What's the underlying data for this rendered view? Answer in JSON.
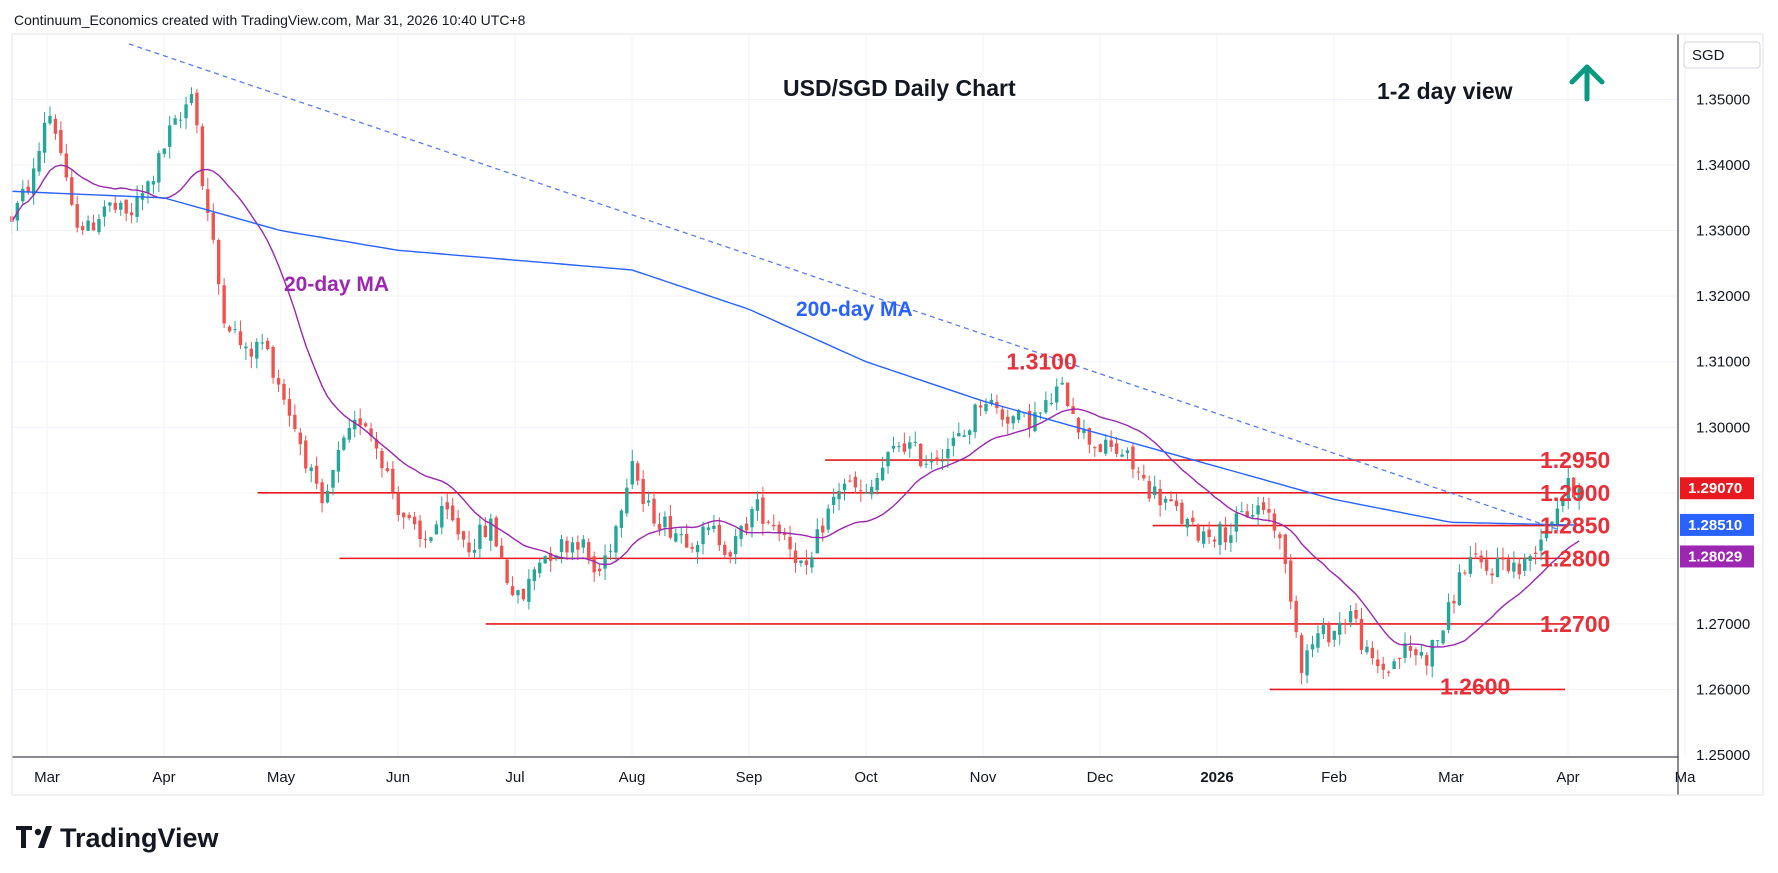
{
  "header": {
    "attribution": "Continuum_Economics created with TradingView.com, Mar 31, 2026 10:40 UTC+8"
  },
  "footer": {
    "brand": "TradingView"
  },
  "colors": {
    "up": "#26a69a",
    "down": "#ef5350",
    "level": "#e8191f",
    "ma20": "#9c27b0",
    "ma200": "#2962ff",
    "trendline": "#5b7cf0",
    "arrow": "#089981",
    "badge_last": "#e8191f",
    "badge_ma200": "#2962ff",
    "badge_ma20": "#9c27b0"
  },
  "chart_data": {
    "type": "candlestick",
    "title": "USD/SGD Daily Chart",
    "view_label": "1-2 day view",
    "view_direction": "up",
    "currency": "SGD",
    "ylim": [
      1.25,
      1.36
    ],
    "y_ticks": [
      "1.25000",
      "1.26000",
      "1.27000",
      "1.28000",
      "1.29000",
      "1.30000",
      "1.31000",
      "1.32000",
      "1.33000",
      "1.34000",
      "1.35000"
    ],
    "x_ticks": [
      {
        "label": "Mar",
        "bold": false
      },
      {
        "label": "Apr",
        "bold": false
      },
      {
        "label": "May",
        "bold": false
      },
      {
        "label": "Jun",
        "bold": false
      },
      {
        "label": "Jul",
        "bold": false
      },
      {
        "label": "Aug",
        "bold": false
      },
      {
        "label": "Sep",
        "bold": false
      },
      {
        "label": "Oct",
        "bold": false
      },
      {
        "label": "Nov",
        "bold": false
      },
      {
        "label": "Dec",
        "bold": false
      },
      {
        "label": "2026",
        "bold": true
      },
      {
        "label": "Feb",
        "bold": false
      },
      {
        "label": "Mar",
        "bold": false
      },
      {
        "label": "Apr",
        "bold": false
      },
      {
        "label": "Ma",
        "bold": false
      }
    ],
    "x_tick_months": [
      0,
      1,
      2,
      3,
      4,
      5,
      6,
      7,
      8,
      9,
      10,
      11,
      12,
      13,
      14
    ],
    "x_range_months": [
      -0.3,
      13.1
    ],
    "levels": [
      {
        "label": "1.3100",
        "value": 1.31,
        "line": false,
        "start_month": 8.2
      },
      {
        "label": "1.2950",
        "value": 1.295,
        "line": true,
        "start_month": 6.65
      },
      {
        "label": "1.2900",
        "value": 1.29,
        "line": true,
        "start_month": 1.8
      },
      {
        "label": "1.2850",
        "value": 1.285,
        "line": true,
        "start_month": 9.45
      },
      {
        "label": "1.2800",
        "value": 1.28,
        "line": true,
        "start_month": 2.5
      },
      {
        "label": "1.2700",
        "value": 1.27,
        "line": true,
        "start_month": 3.75
      },
      {
        "label": "1.2600",
        "value": 1.26,
        "line": true,
        "start_month": 10.45
      }
    ],
    "price_badges": [
      {
        "label": "1.29070",
        "value": 1.2907,
        "color": "badge_last"
      },
      {
        "label": "1.28510",
        "value": 1.2851,
        "color": "badge_ma200"
      },
      {
        "label": "1.28029",
        "value": 1.28029,
        "color": "badge_ma20"
      }
    ],
    "trendline": {
      "start": [
        0.7,
        1.3585
      ],
      "end": [
        13.0,
        1.2839
      ]
    },
    "ma_labels": {
      "ma20": "20-day MA",
      "ma200": "200-day MA"
    },
    "anchors_close": [
      [
        -0.3,
        1.332
      ],
      [
        -0.1,
        1.339
      ],
      [
        0.0,
        1.349
      ],
      [
        0.1,
        1.344
      ],
      [
        0.2,
        1.333
      ],
      [
        0.35,
        1.33
      ],
      [
        0.5,
        1.334
      ],
      [
        0.7,
        1.332
      ],
      [
        0.9,
        1.338
      ],
      [
        1.05,
        1.345
      ],
      [
        1.15,
        1.347
      ],
      [
        1.25,
        1.353
      ],
      [
        1.32,
        1.338
      ],
      [
        1.4,
        1.33
      ],
      [
        1.5,
        1.318
      ],
      [
        1.7,
        1.311
      ],
      [
        1.85,
        1.313
      ],
      [
        2.0,
        1.306
      ],
      [
        2.2,
        1.296
      ],
      [
        2.35,
        1.287
      ],
      [
        2.5,
        1.296
      ],
      [
        2.7,
        1.302
      ],
      [
        2.85,
        1.296
      ],
      [
        3.0,
        1.288
      ],
      [
        3.2,
        1.282
      ],
      [
        3.4,
        1.287
      ],
      [
        3.6,
        1.282
      ],
      [
        3.8,
        1.285
      ],
      [
        3.95,
        1.276
      ],
      [
        4.05,
        1.273
      ],
      [
        4.2,
        1.28
      ],
      [
        4.4,
        1.282
      ],
      [
        4.55,
        1.283
      ],
      [
        4.7,
        1.277
      ],
      [
        4.85,
        1.284
      ],
      [
        5.0,
        1.296
      ],
      [
        5.1,
        1.288
      ],
      [
        5.3,
        1.285
      ],
      [
        5.5,
        1.283
      ],
      [
        5.7,
        1.284
      ],
      [
        5.85,
        1.281
      ],
      [
        6.05,
        1.288
      ],
      [
        6.3,
        1.284
      ],
      [
        6.5,
        1.277
      ],
      [
        6.6,
        1.284
      ],
      [
        6.8,
        1.292
      ],
      [
        7.0,
        1.289
      ],
      [
        7.15,
        1.294
      ],
      [
        7.3,
        1.298
      ],
      [
        7.5,
        1.295
      ],
      [
        7.7,
        1.297
      ],
      [
        7.85,
        1.299
      ],
      [
        8.0,
        1.305
      ],
      [
        8.15,
        1.302
      ],
      [
        8.35,
        1.301
      ],
      [
        8.5,
        1.302
      ],
      [
        8.65,
        1.306
      ],
      [
        8.75,
        1.304
      ],
      [
        8.85,
        1.299
      ],
      [
        9.0,
        1.297
      ],
      [
        9.2,
        1.296
      ],
      [
        9.4,
        1.291
      ],
      [
        9.6,
        1.288
      ],
      [
        9.8,
        1.284
      ],
      [
        9.95,
        1.284
      ],
      [
        10.1,
        1.284
      ],
      [
        10.25,
        1.287
      ],
      [
        10.4,
        1.288
      ],
      [
        10.5,
        1.285
      ],
      [
        10.62,
        1.276
      ],
      [
        10.72,
        1.264
      ],
      [
        10.85,
        1.268
      ],
      [
        11.0,
        1.269
      ],
      [
        11.15,
        1.272
      ],
      [
        11.3,
        1.264
      ],
      [
        11.45,
        1.263
      ],
      [
        11.6,
        1.266
      ],
      [
        11.8,
        1.265
      ],
      [
        11.95,
        1.27
      ],
      [
        12.05,
        1.276
      ],
      [
        12.15,
        1.28
      ],
      [
        12.3,
        1.278
      ],
      [
        12.45,
        1.28
      ],
      [
        12.6,
        1.278
      ],
      [
        12.75,
        1.283
      ],
      [
        12.85,
        1.286
      ],
      [
        12.93,
        1.289
      ],
      [
        13.0,
        1.2907
      ]
    ],
    "candles_note": "Daily OHLC candles generated deterministically around anchors_close; moving averages computed from closes",
    "ma200_anchors": [
      [
        -0.3,
        1.336
      ],
      [
        1.0,
        1.335
      ],
      [
        2.0,
        1.33
      ],
      [
        3.0,
        1.327
      ],
      [
        4.0,
        1.3255
      ],
      [
        5.0,
        1.324
      ],
      [
        6.0,
        1.318
      ],
      [
        7.0,
        1.31
      ],
      [
        8.0,
        1.304
      ],
      [
        9.0,
        1.299
      ],
      [
        10.0,
        1.294
      ],
      [
        11.0,
        1.289
      ],
      [
        12.0,
        1.2855
      ],
      [
        13.0,
        1.2851
      ]
    ]
  }
}
